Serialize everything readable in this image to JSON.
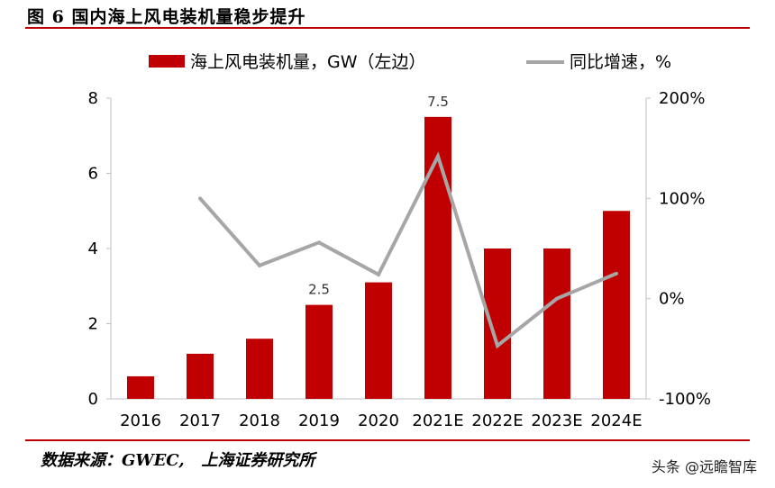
{
  "figure": {
    "title": "图 6 国内海上风电装机量稳步提升",
    "source": "数据来源：GWEC,   上海证券研究所",
    "watermark": "头条 @远瞻智库"
  },
  "chart_data": {
    "type": "bar",
    "categories": [
      "2016",
      "2017",
      "2018",
      "2019",
      "2020",
      "2021E",
      "2022E",
      "2023E",
      "2024E"
    ],
    "series": [
      {
        "name": "海上风电装机量，GW（左边）",
        "type": "bar",
        "axis": "left",
        "color": "#c00000",
        "values": [
          0.6,
          1.2,
          1.6,
          2.5,
          3.1,
          7.5,
          4.0,
          4.0,
          5.0
        ]
      },
      {
        "name": "同比增速，%",
        "type": "line",
        "axis": "right",
        "color": "#a6a6a6",
        "values": [
          null,
          100,
          33,
          56,
          24,
          142,
          -47,
          0,
          25
        ]
      }
    ],
    "data_labels": [
      {
        "index": 3,
        "text": "2.5"
      },
      {
        "index": 5,
        "text": "7.5"
      }
    ],
    "y_left": {
      "min": 0,
      "max": 8,
      "ticks": [
        "0",
        "2",
        "4",
        "6",
        "8"
      ]
    },
    "y_right": {
      "min": -100,
      "max": 200,
      "ticks": [
        "-100%",
        "0%",
        "100%",
        "200%"
      ]
    },
    "legend_position": "top",
    "grid": false
  }
}
